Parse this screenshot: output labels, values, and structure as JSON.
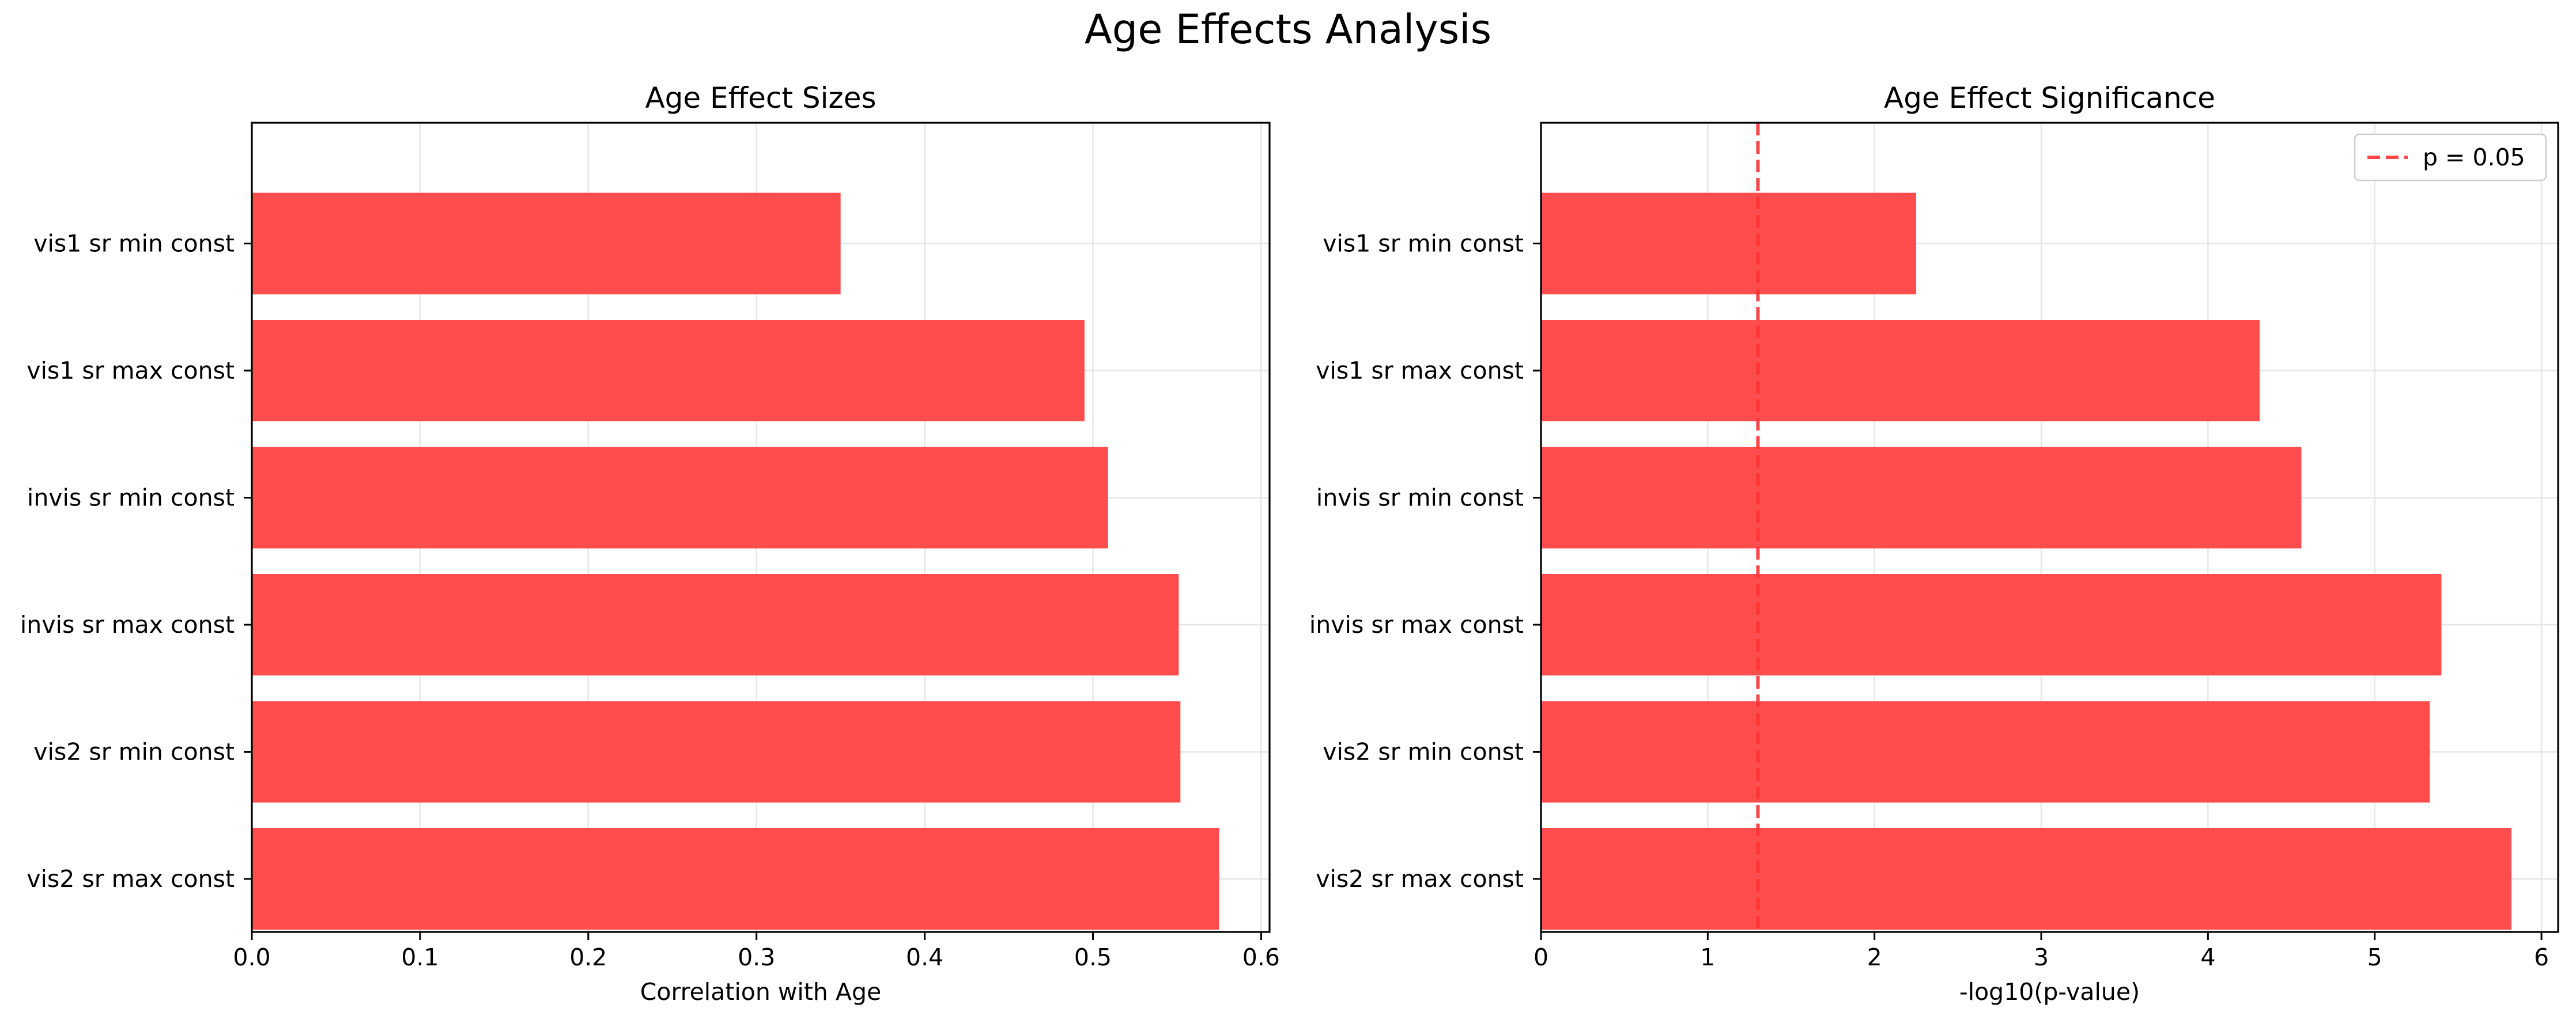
{
  "figure": {
    "suptitle": "Age Effects Analysis"
  },
  "chart_data": [
    {
      "type": "bar",
      "orientation": "horizontal",
      "title": "Age Effect Sizes",
      "xlabel": "Correlation with Age",
      "ylabel": "",
      "categories": [
        "vis2 sr max const",
        "vis2 sr min const",
        "invis sr max const",
        "invis sr min const",
        "vis1 sr max const",
        "vis1 sr min const"
      ],
      "values": [
        0.575,
        0.552,
        0.551,
        0.509,
        0.495,
        0.35
      ],
      "xlim": [
        0.0,
        0.605
      ],
      "xticks": [
        "0.0",
        "0.1",
        "0.2",
        "0.3",
        "0.4",
        "0.5",
        "0.6"
      ],
      "grid": true,
      "bar_color": "#ff4d4d"
    },
    {
      "type": "bar",
      "orientation": "horizontal",
      "title": "Age Effect Significance",
      "xlabel": "-log10(p-value)",
      "ylabel": "",
      "categories": [
        "vis2 sr max const",
        "vis2 sr min const",
        "invis sr max const",
        "invis sr min const",
        "vis1 sr max const",
        "vis1 sr min const"
      ],
      "values": [
        5.82,
        5.33,
        5.4,
        4.56,
        4.31,
        2.25
      ],
      "xlim": [
        0,
        6.1
      ],
      "xticks": [
        "0",
        "1",
        "2",
        "3",
        "4",
        "5",
        "6"
      ],
      "grid": true,
      "bar_color": "#ff4d4d",
      "reference_line": {
        "x": 1.301,
        "label": "p = 0.05",
        "color": "#ff3333",
        "style": "dashed"
      },
      "legend": {
        "position": "top-right",
        "entries": [
          "p = 0.05"
        ]
      }
    }
  ]
}
